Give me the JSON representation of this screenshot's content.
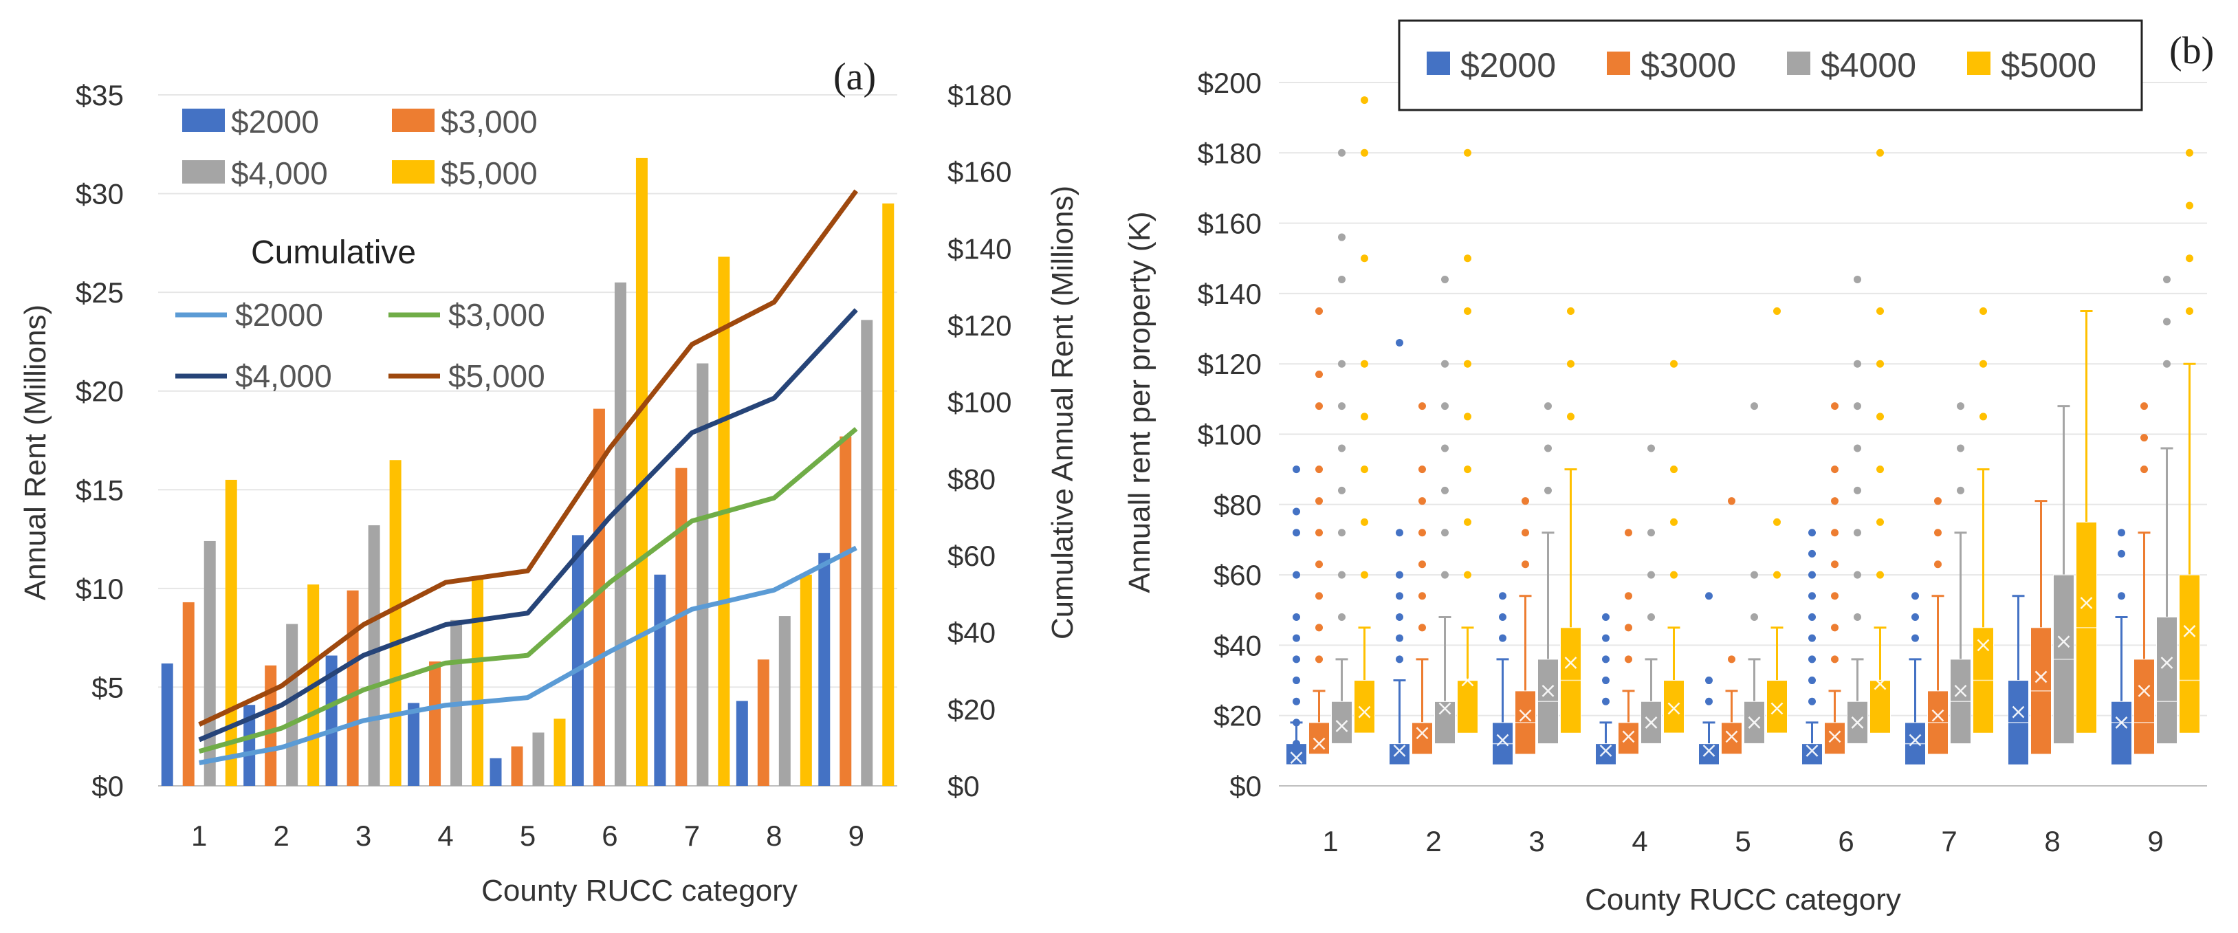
{
  "colors": {
    "s2000": "#4472C4",
    "s3000": "#ED7D31",
    "s4000": "#A5A5A5",
    "s5000": "#FFC000",
    "c2000": "#5B9BD5",
    "c3000": "#70AD47",
    "c4000": "#264478",
    "c5000": "#9E480E"
  },
  "chart_data": [
    {
      "type": "bar",
      "panel_label": "(a)",
      "categories": [
        "1",
        "2",
        "3",
        "4",
        "5",
        "6",
        "7",
        "8",
        "9"
      ],
      "xlabel": "County RUCC category",
      "ylabel": "Annual Rent (Millions)",
      "ylabel_right": "Cumulative Annual Rent (Millions)",
      "ylim": [
        0,
        35
      ],
      "ylim_right": [
        0,
        180
      ],
      "yticks": [
        "$0",
        "$5",
        "$10",
        "$15",
        "$20",
        "$25",
        "$30",
        "$35"
      ],
      "yticks_right": [
        "$0",
        "$20",
        "$40",
        "$60",
        "$80",
        "$100",
        "$120",
        "$140",
        "$160",
        "$180"
      ],
      "legend_title": "Cumulative",
      "series": [
        {
          "name": "$2000",
          "values": [
            6.2,
            4.1,
            6.6,
            4.2,
            1.4,
            12.7,
            10.7,
            4.3,
            11.8
          ]
        },
        {
          "name": "$3,000",
          "values": [
            9.3,
            6.1,
            9.9,
            6.3,
            2.0,
            19.1,
            16.1,
            6.4,
            17.7
          ]
        },
        {
          "name": "$4,000",
          "values": [
            12.4,
            8.2,
            13.2,
            8.4,
            2.7,
            25.5,
            21.4,
            8.6,
            23.6
          ]
        },
        {
          "name": "$5,000",
          "values": [
            15.5,
            10.2,
            16.5,
            10.5,
            3.4,
            31.8,
            26.8,
            10.7,
            29.5
          ]
        }
      ],
      "cumulative_series": [
        {
          "name": "$2000",
          "values": [
            6,
            10,
            17,
            21,
            23,
            35,
            46,
            51,
            62
          ]
        },
        {
          "name": "$3,000",
          "values": [
            9,
            15,
            25,
            32,
            34,
            53,
            69,
            75,
            93
          ]
        },
        {
          "name": "$4,000",
          "values": [
            12,
            21,
            34,
            42,
            45,
            70,
            92,
            101,
            124
          ]
        },
        {
          "name": "$5,000",
          "values": [
            16,
            26,
            42,
            53,
            56,
            88,
            115,
            126,
            155
          ]
        }
      ]
    },
    {
      "type": "box",
      "panel_label": "(b)",
      "categories": [
        "1",
        "2",
        "3",
        "4",
        "5",
        "6",
        "7",
        "8",
        "9"
      ],
      "xlabel": "County RUCC category",
      "ylabel": "Annuall rent per property (K)",
      "ylim": [
        0,
        200
      ],
      "yticks": [
        "$0",
        "$20",
        "$40",
        "$60",
        "$80",
        "$100",
        "$120",
        "$140",
        "$160",
        "$180",
        "$200"
      ],
      "legend": [
        "$2000",
        "$3000",
        "$4000",
        "$5000"
      ],
      "series": [
        {
          "name": "$2000",
          "boxes": [
            {
              "min": 6,
              "q1": 6,
              "median": 6,
              "q3": 12,
              "max": 18,
              "mean": 8,
              "outliers": [
                12,
                18,
                24,
                30,
                36,
                42,
                48,
                60,
                72,
                78,
                90
              ]
            },
            {
              "min": 6,
              "q1": 6,
              "median": 6,
              "q3": 12,
              "max": 30,
              "mean": 10,
              "outliers": [
                36,
                42,
                48,
                54,
                60,
                72,
                126
              ]
            },
            {
              "min": 6,
              "q1": 6,
              "median": 12,
              "q3": 18,
              "max": 36,
              "mean": 13,
              "outliers": [
                42,
                48,
                54
              ]
            },
            {
              "min": 6,
              "q1": 6,
              "median": 6,
              "q3": 12,
              "max": 18,
              "mean": 10,
              "outliers": [
                24,
                30,
                36,
                42,
                48
              ]
            },
            {
              "min": 6,
              "q1": 6,
              "median": 6,
              "q3": 12,
              "max": 18,
              "mean": 10,
              "outliers": [
                24,
                30,
                54
              ]
            },
            {
              "min": 6,
              "q1": 6,
              "median": 6,
              "q3": 12,
              "max": 18,
              "mean": 10,
              "outliers": [
                24,
                30,
                36,
                42,
                48,
                54,
                60,
                66,
                72
              ]
            },
            {
              "min": 6,
              "q1": 6,
              "median": 12,
              "q3": 18,
              "max": 36,
              "mean": 13,
              "outliers": [
                42,
                48,
                54
              ]
            },
            {
              "min": 6,
              "q1": 6,
              "median": 18,
              "q3": 30,
              "max": 54,
              "mean": 21,
              "outliers": []
            },
            {
              "min": 6,
              "q1": 6,
              "median": 18,
              "q3": 24,
              "max": 48,
              "mean": 18,
              "outliers": [
                54,
                66,
                72
              ]
            }
          ]
        },
        {
          "name": "$3000",
          "boxes": [
            {
              "min": 9,
              "q1": 9,
              "median": 9,
              "q3": 18,
              "max": 27,
              "mean": 12,
              "outliers": [
                36,
                45,
                54,
                63,
                72,
                81,
                90,
                108,
                117,
                135
              ]
            },
            {
              "min": 9,
              "q1": 9,
              "median": 18,
              "q3": 18,
              "max": 36,
              "mean": 15,
              "outliers": [
                45,
                54,
                63,
                72,
                81,
                90,
                108
              ]
            },
            {
              "min": 9,
              "q1": 9,
              "median": 18,
              "q3": 27,
              "max": 54,
              "mean": 20,
              "outliers": [
                63,
                72,
                81
              ]
            },
            {
              "min": 9,
              "q1": 9,
              "median": 9,
              "q3": 18,
              "max": 27,
              "mean": 14,
              "outliers": [
                36,
                45,
                54,
                72
              ]
            },
            {
              "min": 9,
              "q1": 9,
              "median": 9,
              "q3": 18,
              "max": 27,
              "mean": 14,
              "outliers": [
                36,
                81
              ]
            },
            {
              "min": 9,
              "q1": 9,
              "median": 9,
              "q3": 18,
              "max": 27,
              "mean": 14,
              "outliers": [
                36,
                45,
                54,
                63,
                72,
                81,
                90,
                108
              ]
            },
            {
              "min": 9,
              "q1": 9,
              "median": 18,
              "q3": 27,
              "max": 54,
              "mean": 20,
              "outliers": [
                63,
                72,
                81
              ]
            },
            {
              "min": 9,
              "q1": 9,
              "median": 27,
              "q3": 45,
              "max": 81,
              "mean": 31,
              "outliers": []
            },
            {
              "min": 9,
              "q1": 9,
              "median": 18,
              "q3": 36,
              "max": 72,
              "mean": 27,
              "outliers": [
                90,
                99,
                108
              ]
            }
          ]
        },
        {
          "name": "$4000",
          "boxes": [
            {
              "min": 12,
              "q1": 12,
              "median": 12,
              "q3": 24,
              "max": 36,
              "mean": 17,
              "outliers": [
                48,
                60,
                72,
                84,
                96,
                108,
                120,
                144,
                156,
                180
              ]
            },
            {
              "min": 12,
              "q1": 12,
              "median": 24,
              "q3": 24,
              "max": 48,
              "mean": 22,
              "outliers": [
                60,
                72,
                84,
                96,
                108,
                120,
                144
              ]
            },
            {
              "min": 12,
              "q1": 12,
              "median": 24,
              "q3": 36,
              "max": 72,
              "mean": 27,
              "outliers": [
                84,
                96,
                108
              ]
            },
            {
              "min": 12,
              "q1": 12,
              "median": 12,
              "q3": 24,
              "max": 36,
              "mean": 18,
              "outliers": [
                48,
                60,
                72,
                96
              ]
            },
            {
              "min": 12,
              "q1": 12,
              "median": 12,
              "q3": 24,
              "max": 36,
              "mean": 18,
              "outliers": [
                48,
                60,
                108
              ]
            },
            {
              "min": 12,
              "q1": 12,
              "median": 12,
              "q3": 24,
              "max": 36,
              "mean": 18,
              "outliers": [
                48,
                60,
                72,
                84,
                96,
                108,
                120,
                144
              ]
            },
            {
              "min": 12,
              "q1": 12,
              "median": 24,
              "q3": 36,
              "max": 72,
              "mean": 27,
              "outliers": [
                84,
                96,
                108
              ]
            },
            {
              "min": 12,
              "q1": 12,
              "median": 36,
              "q3": 60,
              "max": 108,
              "mean": 41,
              "outliers": []
            },
            {
              "min": 12,
              "q1": 12,
              "median": 24,
              "q3": 48,
              "max": 96,
              "mean": 35,
              "outliers": [
                120,
                132,
                144
              ]
            }
          ]
        },
        {
          "name": "$5000",
          "boxes": [
            {
              "min": 15,
              "q1": 15,
              "median": 15,
              "q3": 30,
              "max": 45,
              "mean": 21,
              "outliers": [
                60,
                75,
                90,
                105,
                120,
                150,
                180,
                195
              ]
            },
            {
              "min": 15,
              "q1": 15,
              "median": 30,
              "q3": 30,
              "max": 45,
              "mean": 30,
              "outliers": [
                60,
                75,
                90,
                105,
                120,
                135,
                150,
                180
              ]
            },
            {
              "min": 15,
              "q1": 15,
              "median": 30,
              "q3": 45,
              "max": 90,
              "mean": 35,
              "outliers": [
                105,
                120,
                135
              ]
            },
            {
              "min": 15,
              "q1": 15,
              "median": 15,
              "q3": 30,
              "max": 45,
              "mean": 22,
              "outliers": [
                60,
                75,
                90,
                120
              ]
            },
            {
              "min": 15,
              "q1": 15,
              "median": 15,
              "q3": 30,
              "max": 45,
              "mean": 22,
              "outliers": [
                60,
                75,
                135
              ]
            },
            {
              "min": 15,
              "q1": 15,
              "median": 30,
              "q3": 30,
              "max": 45,
              "mean": 29,
              "outliers": [
                60,
                75,
                90,
                105,
                120,
                135,
                180
              ]
            },
            {
              "min": 15,
              "q1": 15,
              "median": 30,
              "q3": 45,
              "max": 90,
              "mean": 40,
              "outliers": [
                105,
                120,
                135
              ]
            },
            {
              "min": 15,
              "q1": 15,
              "median": 45,
              "q3": 75,
              "max": 135,
              "mean": 52,
              "outliers": []
            },
            {
              "min": 15,
              "q1": 15,
              "median": 30,
              "q3": 60,
              "max": 120,
              "mean": 44,
              "outliers": [
                135,
                150,
                165,
                180
              ]
            }
          ]
        }
      ]
    }
  ]
}
